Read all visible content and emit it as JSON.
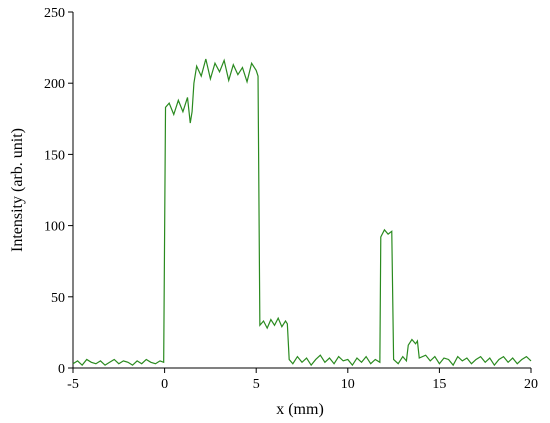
{
  "chart_data": {
    "type": "line",
    "xlabel": "x (mm)",
    "ylabel": "Intensity (arb. unit)",
    "x": [
      -5,
      -4.75,
      -4.5,
      -4.25,
      -4,
      -3.75,
      -3.5,
      -3.25,
      -3,
      -2.75,
      -2.5,
      -2.25,
      -2,
      -1.75,
      -1.5,
      -1.25,
      -1,
      -0.75,
      -0.5,
      -0.25,
      -0.05,
      0.05,
      0.25,
      0.5,
      0.75,
      1,
      1.25,
      1.4,
      1.5,
      1.6,
      1.75,
      2,
      2.25,
      2.5,
      2.75,
      3,
      3.25,
      3.5,
      3.75,
      4,
      4.25,
      4.5,
      4.75,
      5,
      5.1,
      5.2,
      5.4,
      5.6,
      5.8,
      6,
      6.2,
      6.4,
      6.6,
      6.7,
      6.8,
      7,
      7.25,
      7.5,
      7.75,
      8,
      8.25,
      8.5,
      8.75,
      9,
      9.25,
      9.5,
      9.75,
      10,
      10.25,
      10.5,
      10.75,
      11,
      11.25,
      11.5,
      11.75,
      11.8,
      12,
      12.2,
      12.4,
      12.5,
      12.75,
      13,
      13.2,
      13.3,
      13.5,
      13.7,
      13.8,
      13.9,
      14.25,
      14.5,
      14.75,
      15,
      15.25,
      15.5,
      15.75,
      16,
      16.25,
      16.5,
      16.75,
      17,
      17.25,
      17.5,
      17.75,
      18,
      18.25,
      18.5,
      18.75,
      19,
      19.25,
      19.5,
      19.75,
      20
    ],
    "series": [
      {
        "color": "#2a8a1f",
        "values": [
          3,
          5,
          2,
          6,
          4,
          3,
          5,
          2,
          4,
          6,
          3,
          5,
          4,
          2,
          5,
          3,
          6,
          4,
          3,
          5,
          4,
          183,
          186,
          178,
          188,
          180,
          190,
          172,
          180,
          200,
          212,
          205,
          217,
          203,
          214,
          208,
          216,
          202,
          213,
          206,
          211,
          201,
          214,
          209,
          205,
          30,
          33,
          28,
          34,
          30,
          35,
          29,
          33,
          31,
          6,
          3,
          8,
          4,
          7,
          2,
          6,
          9,
          4,
          7,
          3,
          8,
          5,
          6,
          2,
          7,
          4,
          8,
          3,
          6,
          4,
          92,
          97,
          94,
          96,
          6,
          3,
          8,
          5,
          16,
          20,
          17,
          19,
          7,
          9,
          5,
          8,
          3,
          7,
          6,
          2,
          8,
          5,
          7,
          3,
          6,
          8,
          4,
          7,
          2,
          6,
          8,
          4,
          7,
          3,
          6,
          8,
          5
        ]
      }
    ],
    "xlim": [
      -5,
      20
    ],
    "xticks": [
      -5,
      0,
      5,
      10,
      15,
      20
    ],
    "ylim": [
      0,
      250
    ],
    "yticks": [
      0,
      50,
      100,
      150,
      200,
      250
    ]
  }
}
